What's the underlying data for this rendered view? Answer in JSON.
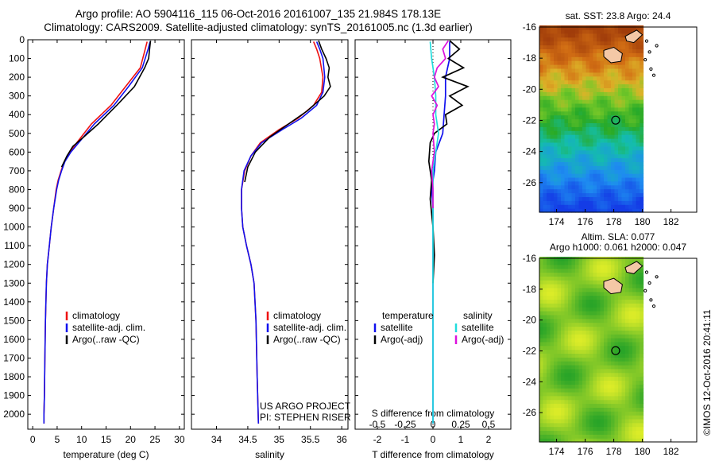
{
  "header": {
    "line1": "Argo profile: AO 5904116_115 06-Oct-2016 20161007_135 21.984S 178.13E",
    "line2": "Climatology: CARS2009. Satellite-adjusted climatology: synTS_20161005.nc (1.3d earlier)"
  },
  "colors": {
    "climatology": "#ee1111",
    "satellite": "#1111ee",
    "argo": "#000000",
    "sat_salinity": "#22dddd",
    "argo_salinity": "#dd11dd"
  },
  "chart_data": [
    {
      "type": "line",
      "name": "temperature",
      "xlabel": "temperature (deg C)",
      "ylabel": "",
      "xlim": [
        -1,
        31
      ],
      "ylim": [
        2080,
        0
      ],
      "xticks": [
        0,
        5,
        10,
        15,
        20,
        25,
        30
      ],
      "yticks": [
        0,
        100,
        200,
        300,
        400,
        500,
        600,
        700,
        800,
        900,
        1000,
        1100,
        1200,
        1300,
        1400,
        1500,
        1600,
        1700,
        1800,
        1900,
        2000
      ],
      "legend": [
        "climatology",
        "satellite-adj. clim.",
        "Argo(..raw -QC)"
      ],
      "series": [
        {
          "name": "climatology",
          "color": "#ee1111",
          "x": [
            23.4,
            23.0,
            22.0,
            19.0,
            16.0,
            12.0,
            9.0,
            7.6,
            6.5,
            5.8,
            5.2,
            4.8,
            4.3,
            3.8,
            3.4,
            3.0,
            2.8,
            2.6,
            2.5,
            2.4,
            2.3,
            2.3
          ],
          "y": [
            10,
            50,
            150,
            250,
            350,
            450,
            550,
            600,
            650,
            700,
            750,
            800,
            900,
            1000,
            1100,
            1200,
            1300,
            1500,
            1700,
            1900,
            2000,
            2050
          ]
        },
        {
          "name": "satellite-adj. clim.",
          "color": "#1111ee",
          "x": [
            24.0,
            23.6,
            22.4,
            19.6,
            16.6,
            12.6,
            9.4,
            7.8,
            6.6,
            5.9,
            5.3,
            4.9,
            4.3,
            3.8,
            3.4,
            3.0,
            2.8,
            2.6,
            2.5,
            2.4,
            2.3,
            2.3
          ],
          "y": [
            10,
            50,
            150,
            250,
            350,
            450,
            550,
            600,
            650,
            700,
            750,
            800,
            900,
            1000,
            1100,
            1200,
            1300,
            1500,
            1700,
            1900,
            2000,
            2050
          ]
        },
        {
          "name": "Argo(..raw -QC)",
          "color": "#000000",
          "x": [
            24.1,
            23.9,
            23.7,
            22.9,
            20.8,
            17.2,
            13.4,
            10.4,
            8.2,
            7.0,
            5.9
          ],
          "y": [
            5,
            50,
            100,
            150,
            250,
            350,
            450,
            520,
            570,
            620,
            680
          ]
        }
      ]
    },
    {
      "type": "line",
      "name": "salinity",
      "xlabel": "salinity",
      "xlim": [
        33.6,
        36.1
      ],
      "ylim": [
        2080,
        0
      ],
      "xticks": [
        34,
        34.5,
        35,
        35.5,
        36
      ],
      "legend": [
        "climatology",
        "satellite-adj. clim.",
        "Argo(..raw -QC)"
      ],
      "annotations": [
        "US ARGO PROJECT",
        "PI: STEPHEN RISER"
      ],
      "series": [
        {
          "name": "climatology",
          "color": "#ee1111",
          "x": [
            35.55,
            35.6,
            35.65,
            35.7,
            35.68,
            35.55,
            35.3,
            35.0,
            34.7,
            34.55,
            34.45,
            34.4,
            34.4,
            34.42,
            34.48,
            34.55,
            34.6,
            34.63,
            34.65,
            34.67
          ],
          "y": [
            10,
            50,
            100,
            200,
            280,
            350,
            420,
            480,
            550,
            620,
            700,
            800,
            900,
            1000,
            1100,
            1200,
            1300,
            1500,
            1800,
            2050
          ]
        },
        {
          "name": "satellite-adj. clim.",
          "color": "#1111ee",
          "x": [
            35.6,
            35.65,
            35.7,
            35.73,
            35.7,
            35.6,
            35.35,
            35.05,
            34.72,
            34.55,
            34.44,
            34.4,
            34.4,
            34.42,
            34.48,
            34.55,
            34.6,
            34.63,
            34.65,
            34.67
          ],
          "y": [
            10,
            50,
            100,
            200,
            280,
            350,
            420,
            480,
            550,
            620,
            700,
            800,
            900,
            1000,
            1100,
            1200,
            1300,
            1500,
            1800,
            2050
          ]
        },
        {
          "name": "Argo(..raw -QC)",
          "color": "#000000",
          "x": [
            35.63,
            35.68,
            35.75,
            35.8,
            35.78,
            35.82,
            35.72,
            35.45,
            35.15,
            34.85,
            34.62,
            34.5,
            34.45
          ],
          "y": [
            5,
            50,
            100,
            150,
            200,
            250,
            300,
            380,
            450,
            520,
            600,
            680,
            760
          ]
        }
      ]
    },
    {
      "type": "line",
      "name": "difference",
      "xlabel": "T difference from climatology",
      "xlabel_top": "S difference from climatology",
      "xlim": [
        -2.8,
        2.8
      ],
      "ylim": [
        2080,
        0
      ],
      "xticks": [
        -2,
        -1,
        0,
        1,
        2
      ],
      "xticks_s": [
        -0.5,
        -0.25,
        0,
        0.25,
        0.5
      ],
      "legend_left_title": "temperature",
      "legend_left": [
        "satellite",
        "Argo(-adj)"
      ],
      "legend_right_title": "salinity",
      "legend_right": [
        "satellite",
        "Argo(-adj)"
      ],
      "series": [
        {
          "name": "T satellite",
          "color": "#1111ee",
          "x": [
            0.6,
            0.6,
            0.45,
            0.45,
            0.4,
            0.35,
            0.1,
            0.05,
            -0.05,
            0,
            0,
            0,
            0,
            0
          ],
          "y": [
            10,
            100,
            200,
            300,
            400,
            500,
            600,
            700,
            800,
            900,
            1000,
            1300,
            1700,
            2050
          ]
        },
        {
          "name": "T Argo(-adj)",
          "color": "#000000",
          "x": [
            0.6,
            0.95,
            0.55,
            1.1,
            0.35,
            1.25,
            0.6,
            1.05,
            0.45,
            0.5,
            0.05,
            -0.1,
            -0.15,
            -0.05,
            -0.1,
            0,
            0.05,
            0
          ],
          "y": [
            5,
            50,
            100,
            150,
            200,
            250,
            300,
            350,
            400,
            450,
            500,
            550,
            650,
            750,
            850,
            1000,
            1150,
            1300
          ]
        },
        {
          "name": "S satellite",
          "color": "#22dddd",
          "x": [
            -0.1,
            -0.05,
            0.05,
            0.1,
            0.1,
            0.2,
            0.1,
            0,
            0,
            0,
            0,
            0
          ],
          "y": [
            10,
            100,
            200,
            300,
            400,
            500,
            600,
            700,
            900,
            1200,
            1600,
            2050
          ]
        },
        {
          "name": "S Argo(-adj)",
          "color": "#dd11dd",
          "x": [
            0.55,
            0.35,
            0.45,
            0.15,
            0.05,
            0.2,
            -0.05,
            0.15,
            0,
            0.05,
            0,
            0.05,
            -0.05,
            0,
            0
          ],
          "y": [
            5,
            50,
            100,
            150,
            200,
            250,
            300,
            350,
            400,
            450,
            500,
            600,
            700,
            800,
            900
          ]
        }
      ]
    },
    {
      "type": "heatmap",
      "name": "sst_map",
      "title": "sat. SST: 23.8  Argo: 24.4",
      "xlim": [
        172.8,
        183.8
      ],
      "ylim": [
        -27.9,
        -16
      ],
      "xticks": [
        174,
        176,
        178,
        180,
        182
      ],
      "yticks": [
        -16,
        -18,
        -20,
        -22,
        -24,
        -26
      ],
      "argo_position": {
        "lon": 178.13,
        "lat": -21.984
      }
    },
    {
      "type": "heatmap",
      "name": "sla_map",
      "title": "Altim. SLA: 0.077",
      "subtitle": "Argo h1000: 0.061  h2000: 0.047",
      "xlim": [
        172.8,
        183.8
      ],
      "ylim": [
        -27.9,
        -16
      ],
      "xticks": [
        174,
        176,
        178,
        180,
        182
      ],
      "yticks": [
        -16,
        -18,
        -20,
        -22,
        -24,
        -26
      ],
      "argo_position": {
        "lon": 178.13,
        "lat": -21.984
      }
    }
  ],
  "footer": {
    "stamp": "©IMOS 12-Oct-2016 20:41:11"
  }
}
